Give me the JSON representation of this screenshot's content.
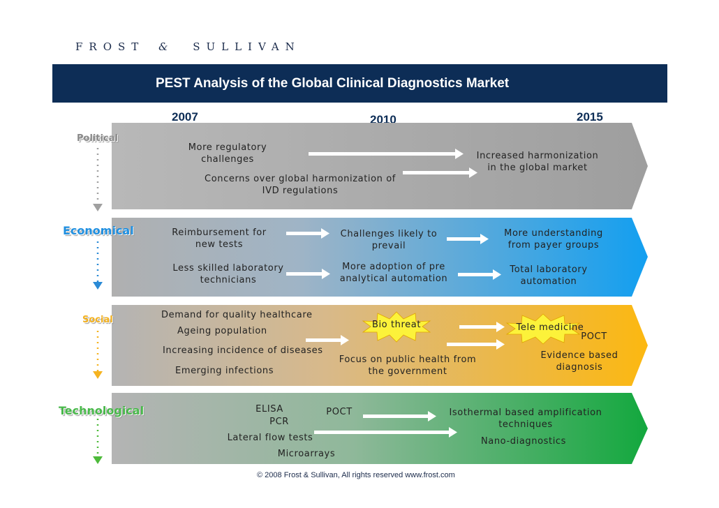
{
  "logo": {
    "left": "FROST",
    "amp": "&",
    "right": "SULLIVAN"
  },
  "title": "PEST Analysis of the Global Clinical Diagnostics Market",
  "years": [
    "2007",
    "2010",
    "2015"
  ],
  "colors": {
    "political": "#a9a9a9",
    "economical": "#1e9ee8",
    "social": "#fbb917",
    "technological": "#1aab3f",
    "title_bar": "#0d2d56"
  },
  "bands": {
    "political": {
      "label": "Political",
      "items": [
        "More regulatory\nchallenges",
        "Concerns over global harmonization of\nIVD regulations",
        "Increased harmonization\nin the global market"
      ]
    },
    "economical": {
      "label": "Economical",
      "items": [
        "Reimbursement for\nnew tests",
        "Less skilled laboratory\ntechnicians",
        "Challenges likely to\nprevail",
        "More adoption of pre\nanalytical automation",
        "More understanding\nfrom payer groups",
        "Total laboratory\nautomation"
      ]
    },
    "social": {
      "label": "Social",
      "items": [
        "Demand for quality healthcare",
        "Ageing population",
        "Increasing incidence of diseases",
        "Emerging infections",
        "Bio threat",
        "Focus on public health from\nthe government",
        "Tele medicine",
        "POCT",
        "Evidence based\ndiagnosis"
      ]
    },
    "technological": {
      "label": "Technological",
      "items": [
        "ELISA",
        "PCR",
        "POCT",
        "Lateral flow tests",
        "Microarrays",
        "Isothermal based amplification\ntechniques",
        "Nano-diagnostics"
      ]
    }
  },
  "footer": "© 2008 Frost & Sullivan, All rights reserved  www.frost.com"
}
